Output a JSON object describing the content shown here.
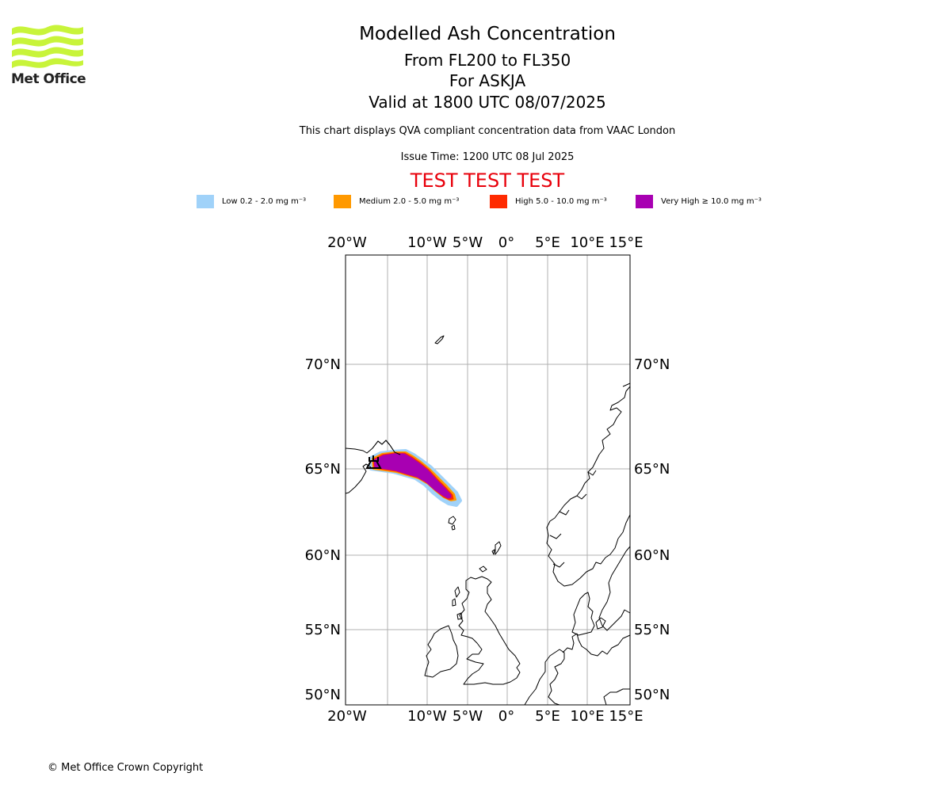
{
  "brand": {
    "logo_text": "Met Office",
    "logo_color": "#c8f43a"
  },
  "header": {
    "title": "Modelled Ash Concentration",
    "levels": "From FL200 to FL350",
    "volcano": "For ASKJA",
    "valid": "Valid at 1800 UTC 08/07/2025",
    "description": "This chart displays QVA compliant concentration data from VAAC London",
    "issue_time": "Issue Time: 1200 UTC 08 Jul 2025",
    "test_banner": "TEST TEST TEST",
    "test_color": "#e8000b"
  },
  "legend": [
    {
      "label": "Low 0.2 - 2.0 mg m⁻³",
      "color": "#a0d2f9"
    },
    {
      "label": "Medium 2.0 - 5.0 mg m⁻³",
      "color": "#ff9900"
    },
    {
      "label": "High 5.0 - 10.0 mg m⁻³",
      "color": "#ff2a00"
    },
    {
      "label": "Very High  ≥  10.0 mg m⁻³",
      "color": "#a800b2"
    }
  ],
  "map": {
    "lon_labels": [
      "20°W",
      "10°W",
      "5°W",
      "0°",
      "5°E",
      "10°E",
      "15°E"
    ],
    "lat_labels": [
      "70°N",
      "65°N",
      "60°N",
      "55°N",
      "50°N"
    ],
    "volcano_icon": "volcano-icon"
  },
  "footer": {
    "copyright": "© Met Office Crown Copyright"
  }
}
